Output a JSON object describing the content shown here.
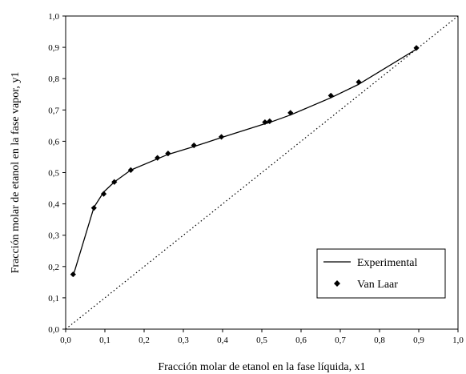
{
  "chart_data": {
    "type": "line",
    "xlabel": "Fracción molar de etanol en la fase líquida, x1",
    "ylabel": "Fracción molar de etanol en la fase vapor, y1",
    "xlim": [
      0,
      1
    ],
    "ylim": [
      0,
      1
    ],
    "x_ticks": [
      "0,0",
      "0,1",
      "0,2",
      "0,3",
      "0,4",
      "0,5",
      "0,6",
      "0,7",
      "0,8",
      "0,9",
      "1,0"
    ],
    "y_ticks": [
      "0,0",
      "0,1",
      "0,2",
      "0,3",
      "0,4",
      "0,5",
      "0,6",
      "0,7",
      "0,8",
      "0,9",
      "1,0"
    ],
    "grid": false,
    "legend_position": "bottom-right",
    "series": [
      {
        "name": "Experimental",
        "style": "solid-line",
        "color": "#000000",
        "x": [
          0.019,
          0.072,
          0.097,
          0.124,
          0.166,
          0.234,
          0.261,
          0.327,
          0.397,
          0.508,
          0.52,
          0.573,
          0.676,
          0.747,
          0.894
        ],
        "y": [
          0.17,
          0.389,
          0.438,
          0.47,
          0.508,
          0.544,
          0.558,
          0.583,
          0.612,
          0.656,
          0.66,
          0.684,
          0.739,
          0.782,
          0.894
        ]
      },
      {
        "name": "Van Laar",
        "style": "diamond-markers",
        "color": "#000000",
        "x": [
          0.019,
          0.072,
          0.097,
          0.124,
          0.166,
          0.234,
          0.261,
          0.327,
          0.397,
          0.508,
          0.52,
          0.573,
          0.676,
          0.747,
          0.894
        ],
        "y": [
          0.175,
          0.387,
          0.432,
          0.47,
          0.508,
          0.547,
          0.561,
          0.587,
          0.614,
          0.661,
          0.664,
          0.691,
          0.746,
          0.789,
          0.898
        ]
      },
      {
        "name": "",
        "style": "dotted-diagonal",
        "color": "#000000",
        "x": [
          0,
          1
        ],
        "y": [
          0,
          1
        ]
      }
    ]
  }
}
